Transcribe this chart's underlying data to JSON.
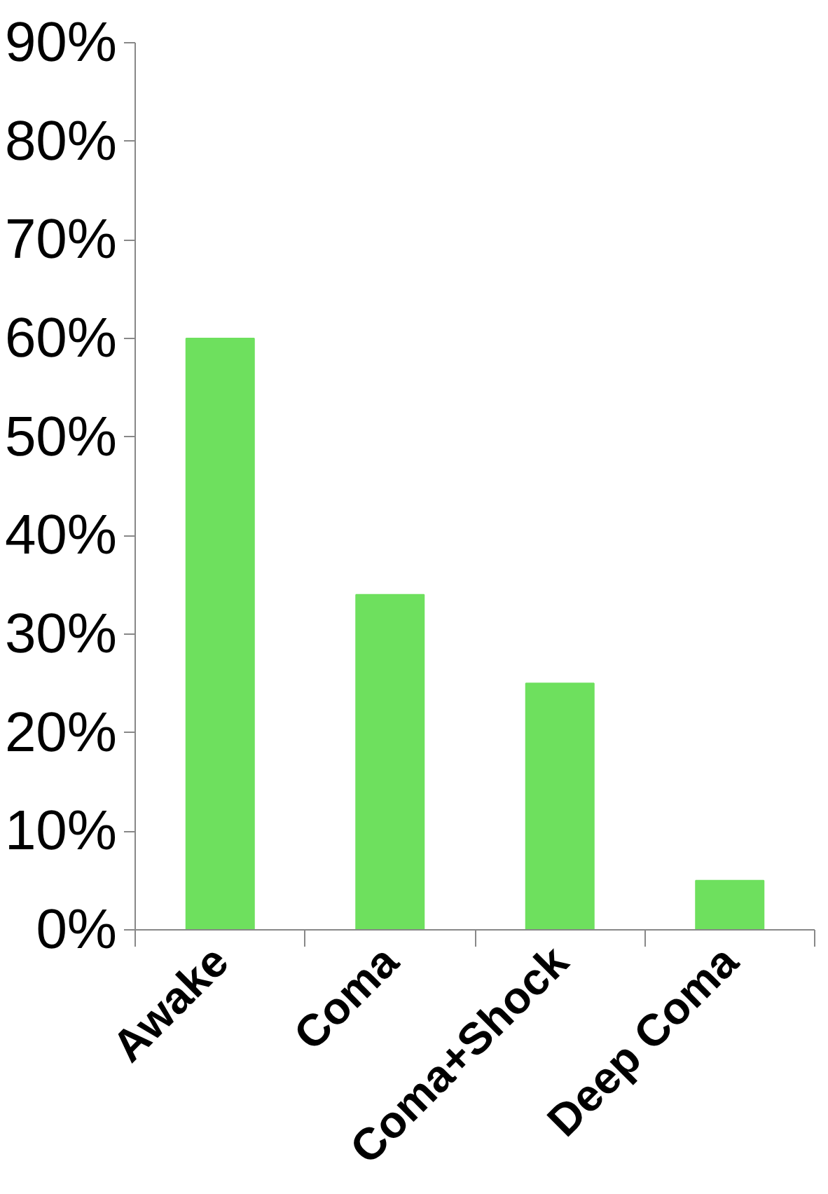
{
  "chart_data": {
    "type": "bar",
    "categories": [
      "Awake",
      "Coma",
      "Coma+Shock",
      "Deep Coma"
    ],
    "values": [
      60,
      34,
      25,
      5
    ],
    "color": "#6ee05e",
    "ylim": [
      0,
      90
    ],
    "yticks": [
      {
        "value": 0,
        "label": "0%"
      },
      {
        "value": 10,
        "label": "10%"
      },
      {
        "value": 20,
        "label": "20%"
      },
      {
        "value": 30,
        "label": "30%"
      },
      {
        "value": 40,
        "label": "40%"
      },
      {
        "value": 50,
        "label": "50%"
      },
      {
        "value": 60,
        "label": "60%"
      },
      {
        "value": 70,
        "label": "70%"
      },
      {
        "value": 80,
        "label": "80%"
      },
      {
        "value": 90,
        "label": "90%"
      }
    ],
    "grid": false
  }
}
